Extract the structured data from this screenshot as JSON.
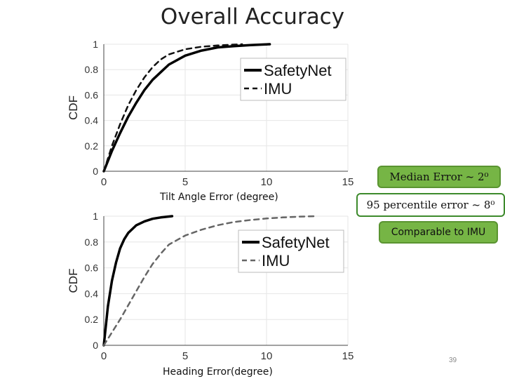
{
  "slide": {
    "title": "Overall Accuracy",
    "page_number": "39"
  },
  "callouts": {
    "median": "Median Error ~ 2⁰",
    "percentile": "95 percentile error  ~ 8⁰",
    "comparable": "Comparable to IMU"
  },
  "colors": {
    "callout_fill": "#76b545",
    "callout_border": "#3d8a2c",
    "safetynet": "#000000",
    "imu": "#555555"
  },
  "chart_data": [
    {
      "type": "line",
      "title": "",
      "xlabel": "Tilt Angle Error (degree)",
      "ylabel": "CDF",
      "xlim": [
        0,
        15
      ],
      "ylim": [
        0,
        1
      ],
      "xticks": [
        "0",
        "5",
        "10",
        "15"
      ],
      "yticks": [
        "0",
        "0.2",
        "0.4",
        "0.6",
        "0.8",
        "1"
      ],
      "grid": true,
      "legend_position": "top-right",
      "series": [
        {
          "name": "SafetyNet",
          "style": "solid",
          "x": [
            0,
            0.5,
            1,
            1.5,
            2,
            2.5,
            3,
            3.5,
            4,
            5,
            6,
            7,
            8,
            9,
            10.2
          ],
          "y": [
            0,
            0.16,
            0.3,
            0.43,
            0.54,
            0.64,
            0.72,
            0.78,
            0.84,
            0.91,
            0.95,
            0.975,
            0.985,
            0.993,
            1.0
          ]
        },
        {
          "name": "IMU",
          "style": "dashed",
          "x": [
            0,
            0.5,
            1,
            1.5,
            2,
            2.5,
            3,
            3.5,
            4,
            5,
            6,
            7,
            8,
            8.5
          ],
          "y": [
            0,
            0.2,
            0.37,
            0.52,
            0.64,
            0.74,
            0.82,
            0.88,
            0.92,
            0.96,
            0.98,
            0.99,
            0.997,
            1.0
          ]
        }
      ]
    },
    {
      "type": "line",
      "title": "",
      "xlabel": "Heading Error(degree)",
      "ylabel": "CDF",
      "xlim": [
        0,
        15
      ],
      "ylim": [
        0,
        1
      ],
      "xticks": [
        "0",
        "5",
        "10",
        "15"
      ],
      "yticks": [
        "0",
        "0.2",
        "0.4",
        "0.6",
        "0.8",
        "1"
      ],
      "grid": true,
      "legend_position": "top-right",
      "series": [
        {
          "name": "SafetyNet",
          "style": "solid",
          "x": [
            0,
            0.25,
            0.5,
            0.75,
            1,
            1.25,
            1.5,
            2,
            2.5,
            3,
            3.5,
            4.2
          ],
          "y": [
            0,
            0.3,
            0.5,
            0.64,
            0.75,
            0.82,
            0.87,
            0.93,
            0.96,
            0.98,
            0.99,
            1.0
          ]
        },
        {
          "name": "IMU",
          "style": "dashed",
          "x": [
            0,
            0.5,
            1,
            1.5,
            2,
            2.5,
            3,
            3.5,
            4,
            5,
            6,
            7,
            8,
            9,
            10,
            11,
            12,
            13
          ],
          "y": [
            0,
            0.1,
            0.2,
            0.31,
            0.42,
            0.53,
            0.63,
            0.71,
            0.78,
            0.85,
            0.895,
            0.93,
            0.955,
            0.97,
            0.982,
            0.99,
            0.996,
            1.0
          ]
        }
      ]
    }
  ]
}
